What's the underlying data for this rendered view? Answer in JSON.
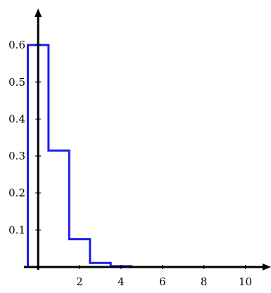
{
  "chart_data": {
    "type": "line",
    "step": true,
    "xlim": [
      -0.55,
      10.9
    ],
    "ylim": [
      0,
      0.68
    ],
    "x_ticks": [
      2,
      4,
      6,
      8,
      10
    ],
    "y_ticks": [
      0.1,
      0.2,
      0.3,
      0.4,
      0.5,
      0.6
    ],
    "x_tick_labels": [
      "2",
      "4",
      "6",
      "8",
      "10"
    ],
    "y_tick_labels": [
      "0.1",
      "0.2",
      "0.3",
      "0.4",
      "0.5",
      "0.6"
    ],
    "grid": false,
    "series": [
      {
        "color": "#1c1cf0",
        "bins": [
          {
            "x0": -0.5,
            "x1": 0.5,
            "value": 0.6
          },
          {
            "x0": 0.5,
            "x1": 1.5,
            "value": 0.315
          },
          {
            "x0": 1.5,
            "x1": 2.5,
            "value": 0.075
          },
          {
            "x0": 2.5,
            "x1": 3.5,
            "value": 0.011
          },
          {
            "x0": 3.5,
            "x1": 4.5,
            "value": 0.002
          },
          {
            "x0": 4.5,
            "x1": 10.9,
            "value": 0
          }
        ]
      }
    ]
  }
}
